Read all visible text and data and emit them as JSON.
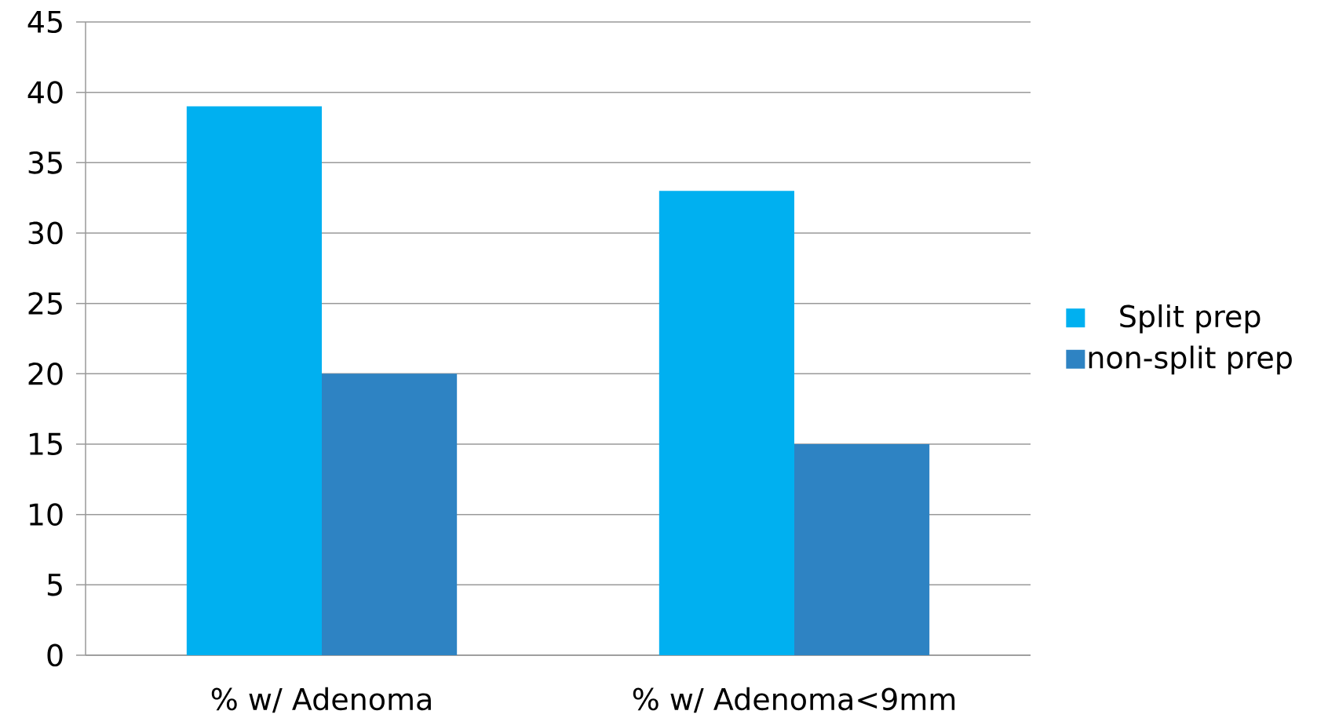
{
  "chart_data": {
    "type": "bar",
    "categories": [
      "% w/ Adenoma",
      "% w/ Adenoma<9mm"
    ],
    "series": [
      {
        "name": "Split prep",
        "color": "#00b0f0",
        "values": [
          39,
          33
        ]
      },
      {
        "name": "non-split prep",
        "color": "#2e83c3",
        "values": [
          20,
          15
        ]
      }
    ],
    "ylim": [
      0,
      45
    ],
    "yticks": [
      0,
      5,
      10,
      15,
      20,
      25,
      30,
      35,
      40,
      45
    ],
    "grid": "y",
    "legend": "right"
  }
}
